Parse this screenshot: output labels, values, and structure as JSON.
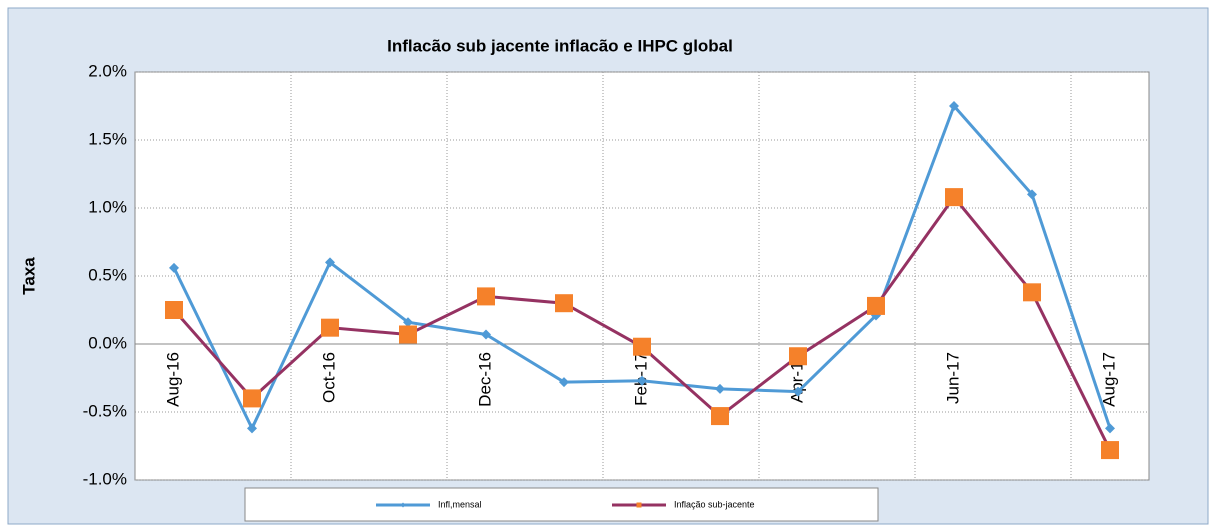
{
  "chart_data": {
    "type": "line",
    "title": "Inflacão sub jacente inflacão e IHPC global",
    "y_label": "Taxa",
    "categories": [
      "Aug-16",
      null,
      "Oct-16",
      null,
      "Dec-16",
      null,
      "Feb-17",
      null,
      "Apr-17",
      null,
      "Jun-17",
      null,
      "Aug-17"
    ],
    "series": [
      {
        "name": "Infl,mensal",
        "color": "#4f9ad6",
        "marker": "diamond",
        "values": [
          0.56,
          -0.62,
          0.6,
          0.16,
          0.07,
          -0.28,
          -0.27,
          -0.33,
          -0.35,
          0.21,
          1.75,
          1.1,
          -0.62
        ]
      },
      {
        "name": "Inflação sub-jacente",
        "color": "#953262",
        "marker_color": "#f5812a",
        "marker": "square",
        "values": [
          0.25,
          -0.4,
          0.12,
          0.07,
          0.35,
          0.3,
          -0.02,
          -0.53,
          -0.09,
          0.28,
          1.08,
          0.38,
          -0.78
        ]
      }
    ],
    "ylim": [
      -1,
      2
    ],
    "yticks": [
      {
        "value": -1,
        "label": "-1.0%"
      },
      {
        "value": -0.5,
        "label": "-0.5%"
      },
      {
        "value": 0,
        "label": "0.0%"
      },
      {
        "value": 0.5,
        "label": "0.5%"
      },
      {
        "value": 1,
        "label": "1.0%"
      },
      {
        "value": 1.5,
        "label": "1.5%"
      },
      {
        "value": 2,
        "label": "2.0%"
      }
    ],
    "grid": true,
    "legend": "bottom"
  }
}
